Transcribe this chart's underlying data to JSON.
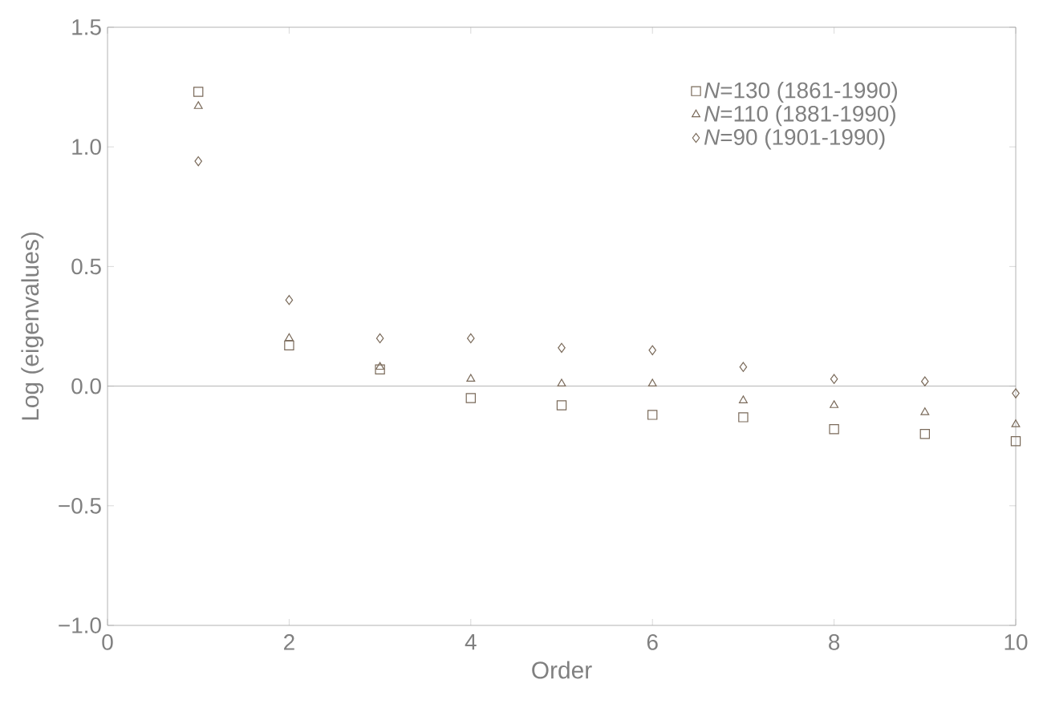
{
  "chart_data": {
    "type": "scatter",
    "xlabel": "Order",
    "ylabel": "Log (eigenvalues)",
    "x": [
      1,
      2,
      3,
      4,
      5,
      6,
      7,
      8,
      9,
      10
    ],
    "series": [
      {
        "name": "*N*=130 (1861-1990)",
        "color": "#7a6a5a",
        "marker": "square",
        "values": [
          1.23,
          0.17,
          0.07,
          -0.05,
          -0.08,
          -0.12,
          -0.13,
          -0.18,
          -0.2,
          -0.23
        ]
      },
      {
        "name": "*N*=110 (1881-1990)",
        "color": "#7a6a5a",
        "marker": "triangle",
        "values": [
          1.17,
          0.2,
          0.08,
          0.03,
          0.01,
          0.01,
          -0.06,
          -0.08,
          -0.11,
          -0.16
        ]
      },
      {
        "name": "*N*=90   (1901-1990)",
        "color": "#7a6a5a",
        "marker": "diamond",
        "values": [
          0.94,
          0.36,
          0.2,
          0.2,
          0.16,
          0.15,
          0.08,
          0.03,
          0.02,
          -0.03
        ]
      }
    ],
    "xlim": [
      0,
      10
    ],
    "xticks": [
      0,
      2,
      4,
      6,
      8,
      10
    ],
    "ylim": [
      -1,
      1.5
    ],
    "yticks": [
      {
        "value": -1,
        "label": "−1.0"
      },
      {
        "value": -0.5,
        "label": "−0.5"
      },
      {
        "value": 0,
        "label": "0.0"
      },
      {
        "value": 0.5,
        "label": "0.5"
      },
      {
        "value": 1,
        "label": "1.0"
      },
      {
        "value": 1.5,
        "label": "1.5"
      }
    ],
    "ref_lines": [
      {
        "axis": "y",
        "value": 0,
        "color": "#9a9a9a"
      }
    ],
    "grid": false,
    "legend": "top right"
  }
}
